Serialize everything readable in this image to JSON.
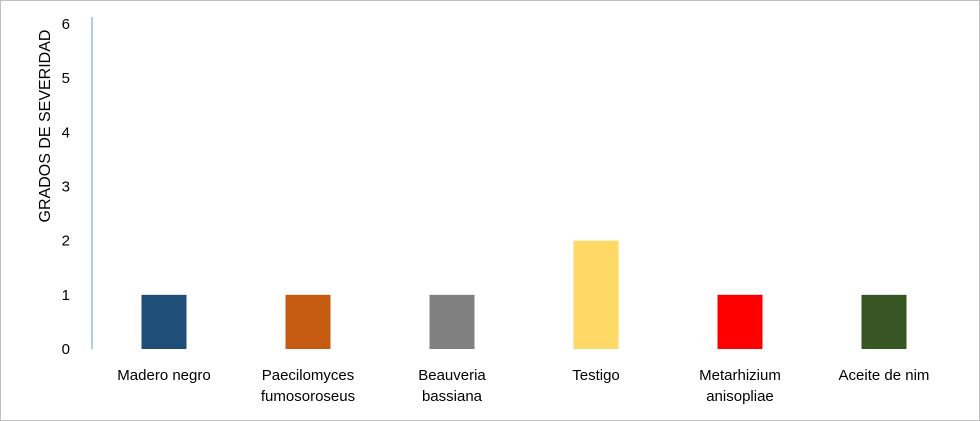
{
  "chart_data": {
    "type": "bar",
    "ylabel": "GRADOS DE SEVERIDAD",
    "xlabel": "",
    "ylim": [
      0,
      6
    ],
    "yticks": [
      "0",
      "1",
      "2",
      "3",
      "4",
      "5",
      "6"
    ],
    "grid": false,
    "categories": [
      [
        "Madero negro"
      ],
      [
        "Paecilomyces",
        "fumosoroseus"
      ],
      [
        "Beauveria",
        "bassiana"
      ],
      [
        "Testigo"
      ],
      [
        "Metarhizium",
        "anisopliae"
      ],
      [
        "Aceite de nim"
      ]
    ],
    "values": [
      1,
      1,
      1,
      2,
      1,
      1
    ],
    "colors": [
      "#1f4e79",
      "#c55a11",
      "#808080",
      "#ffd966",
      "#ff0000",
      "#375623"
    ],
    "axis_color": "#5b9bd5"
  }
}
